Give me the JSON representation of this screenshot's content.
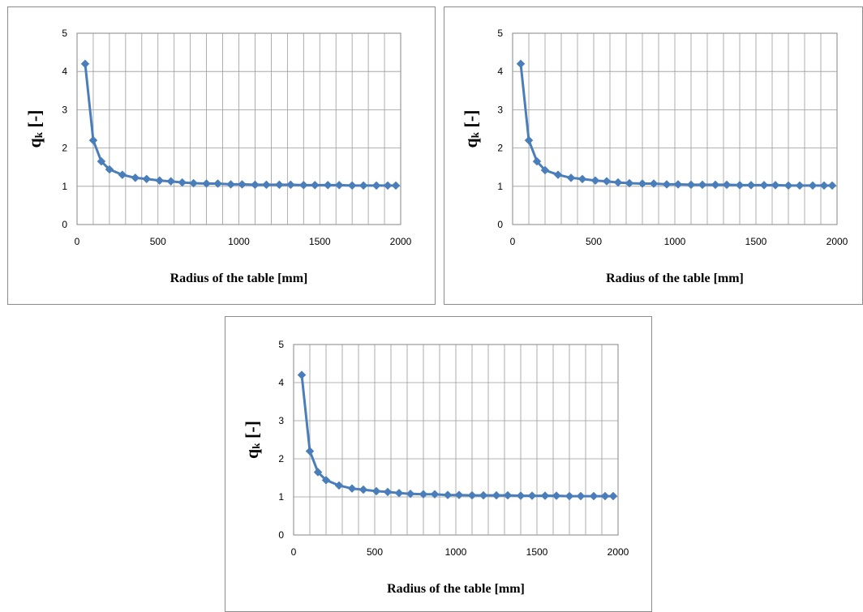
{
  "chart_data": [
    {
      "type": "line",
      "xlabel": "Radius of the table [mm]",
      "ylabel": {
        "main": "q",
        "sub": "k",
        "unit": " [-]"
      },
      "xlim": [
        0,
        2000
      ],
      "ylim": [
        0,
        5
      ],
      "xticks": [
        "0",
        "500",
        "1000",
        "1500",
        "2000"
      ],
      "yticks": [
        "0",
        "1",
        "2",
        "3",
        "4",
        "5"
      ],
      "grid": true,
      "legend": "none",
      "color": "#4a7ebb",
      "marker": "diamond",
      "series": [
        {
          "x": [
            50,
            100,
            150,
            200,
            280,
            360,
            430,
            510,
            580,
            650,
            720,
            800,
            870,
            950,
            1020,
            1100,
            1170,
            1250,
            1320,
            1400,
            1470,
            1550,
            1620,
            1700,
            1770,
            1850,
            1920,
            1970
          ],
          "y": [
            4.2,
            2.2,
            1.65,
            1.44,
            1.3,
            1.22,
            1.19,
            1.15,
            1.13,
            1.1,
            1.08,
            1.07,
            1.07,
            1.05,
            1.05,
            1.04,
            1.04,
            1.04,
            1.04,
            1.03,
            1.03,
            1.03,
            1.03,
            1.02,
            1.02,
            1.02,
            1.02,
            1.02
          ]
        }
      ]
    },
    {
      "type": "line",
      "xlabel": "Radius of the table [mm]",
      "ylabel": {
        "main": "q",
        "sub": "k",
        "unit": " [-]"
      },
      "xlim": [
        0,
        2000
      ],
      "ylim": [
        0,
        5
      ],
      "xticks": [
        "0",
        "500",
        "1000",
        "1500",
        "2000"
      ],
      "yticks": [
        "0",
        "1",
        "2",
        "3",
        "4",
        "5"
      ],
      "grid": true,
      "legend": "none",
      "color": "#4a7ebb",
      "marker": "diamond",
      "series": [
        {
          "x": [
            50,
            100,
            150,
            200,
            280,
            360,
            430,
            510,
            580,
            650,
            720,
            800,
            870,
            950,
            1020,
            1100,
            1170,
            1250,
            1320,
            1400,
            1470,
            1550,
            1620,
            1700,
            1770,
            1850,
            1920,
            1970
          ],
          "y": [
            4.2,
            2.2,
            1.65,
            1.42,
            1.3,
            1.22,
            1.19,
            1.15,
            1.13,
            1.1,
            1.08,
            1.07,
            1.07,
            1.05,
            1.05,
            1.04,
            1.04,
            1.04,
            1.04,
            1.03,
            1.03,
            1.03,
            1.03,
            1.02,
            1.02,
            1.02,
            1.02,
            1.02
          ]
        }
      ]
    },
    {
      "type": "line",
      "xlabel": "Radius of the table [mm]",
      "ylabel": {
        "main": "q",
        "sub": "k",
        "unit": " [-]"
      },
      "xlim": [
        0,
        2000
      ],
      "ylim": [
        0,
        5
      ],
      "xticks": [
        "0",
        "500",
        "1000",
        "1500",
        "2000"
      ],
      "yticks": [
        "0",
        "1",
        "2",
        "3",
        "4",
        "5"
      ],
      "grid": true,
      "legend": "none",
      "color": "#4a7ebb",
      "marker": "diamond",
      "series": [
        {
          "x": [
            50,
            100,
            150,
            200,
            280,
            360,
            430,
            510,
            580,
            650,
            720,
            800,
            870,
            950,
            1020,
            1100,
            1170,
            1250,
            1320,
            1400,
            1470,
            1550,
            1620,
            1700,
            1770,
            1850,
            1920,
            1970
          ],
          "y": [
            4.2,
            2.2,
            1.65,
            1.44,
            1.3,
            1.22,
            1.19,
            1.15,
            1.13,
            1.1,
            1.08,
            1.07,
            1.07,
            1.05,
            1.05,
            1.04,
            1.04,
            1.04,
            1.04,
            1.03,
            1.03,
            1.03,
            1.03,
            1.02,
            1.02,
            1.02,
            1.02,
            1.02
          ]
        }
      ]
    }
  ]
}
